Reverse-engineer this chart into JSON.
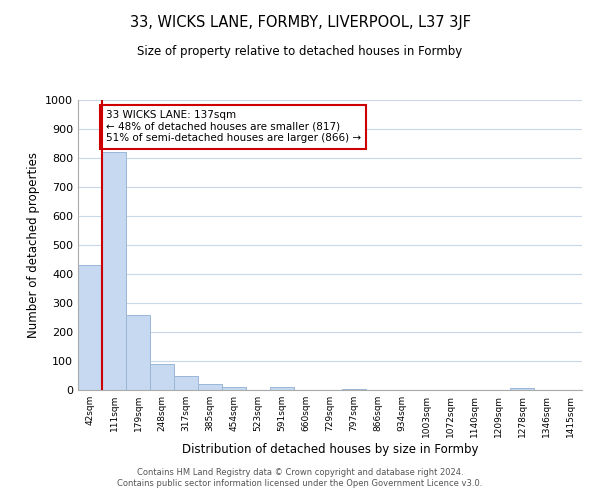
{
  "title": "33, WICKS LANE, FORMBY, LIVERPOOL, L37 3JF",
  "subtitle": "Size of property relative to detached houses in Formby",
  "xlabel": "Distribution of detached houses by size in Formby",
  "ylabel": "Number of detached properties",
  "bar_labels": [
    "42sqm",
    "111sqm",
    "179sqm",
    "248sqm",
    "317sqm",
    "385sqm",
    "454sqm",
    "523sqm",
    "591sqm",
    "660sqm",
    "729sqm",
    "797sqm",
    "866sqm",
    "934sqm",
    "1003sqm",
    "1072sqm",
    "1140sqm",
    "1209sqm",
    "1278sqm",
    "1346sqm",
    "1415sqm"
  ],
  "bar_values": [
    430,
    820,
    260,
    90,
    48,
    22,
    12,
    0,
    10,
    0,
    0,
    5,
    0,
    0,
    0,
    0,
    0,
    0,
    8,
    0,
    0
  ],
  "bar_color": "#c6d9f0",
  "bar_edge_color": "#9ab7d8",
  "vline_x": 1.0,
  "vline_color": "#cc0000",
  "annotation_text": "33 WICKS LANE: 137sqm\n← 48% of detached houses are smaller (817)\n51% of semi-detached houses are larger (866) →",
  "annotation_box_color": "#ffffff",
  "annotation_box_edge_color": "#cc0000",
  "ylim": [
    0,
    1000
  ],
  "yticks": [
    0,
    100,
    200,
    300,
    400,
    500,
    600,
    700,
    800,
    900,
    1000
  ],
  "background_color": "#ffffff",
  "grid_color": "#c8d8e8",
  "footer_line1": "Contains HM Land Registry data © Crown copyright and database right 2024.",
  "footer_line2": "Contains public sector information licensed under the Open Government Licence v3.0."
}
